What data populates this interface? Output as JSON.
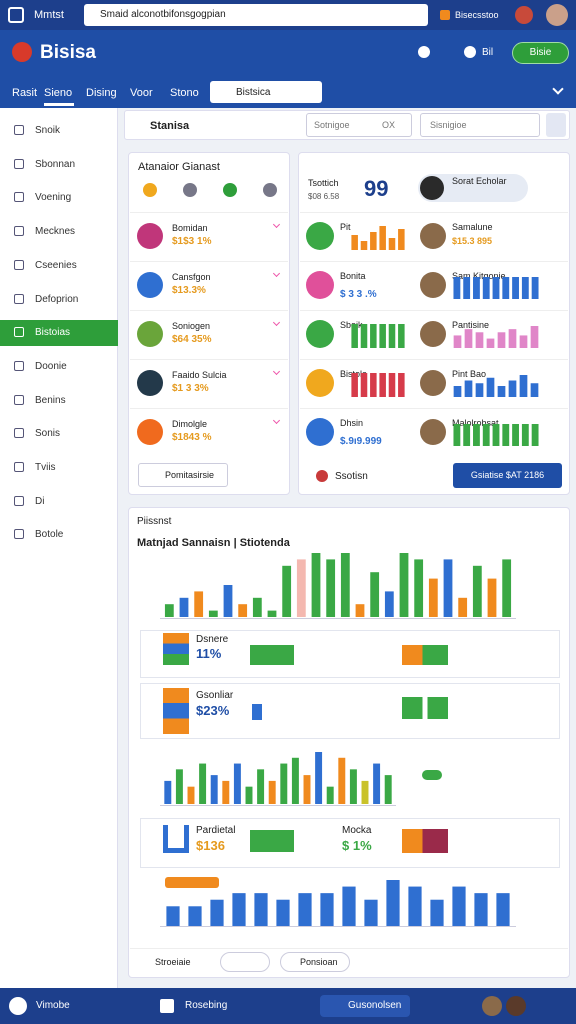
{
  "browser": {
    "title": "Mmtst",
    "url": "Smaid alconotbifonsgogpian",
    "tab": "Bisecsstoo"
  },
  "header": {
    "brand": "Bisisa",
    "menu": "Bil",
    "button": "Bisie"
  },
  "nav": {
    "tabs": [
      "Rasit",
      "Sieno",
      "Dising",
      "Voor",
      "Stono"
    ],
    "active": 1,
    "dropdown": "Bistsica"
  },
  "sidebar": {
    "items": [
      "Snoik",
      "Sbonnan",
      "Voening",
      "Mecknes",
      "Cseenies",
      "Defoprion",
      "Bistoias",
      "Doonie",
      "Benins",
      "Sonis",
      "Tviis",
      "Di",
      "Botole"
    ],
    "active": 6
  },
  "search": {
    "label": "Stanisa",
    "select_a": "Sotnigoe",
    "select_a_extra": "OX",
    "select_b": "Sisnigioe"
  },
  "left_card": {
    "title": "Atanaior Gianast",
    "rows": [
      {
        "name": "Bomidan",
        "value": "$1$3 1%"
      },
      {
        "name": "Cansfgon",
        "value": "$13.3%"
      },
      {
        "name": "Soniogen",
        "value": "$64 35%"
      },
      {
        "name": "Faaido Sulcia",
        "value": "$1 3 3%"
      },
      {
        "name": "Dimolgle",
        "value": "$1843 %"
      }
    ],
    "footer": "Pomitasirsie"
  },
  "right_card": {
    "label": "Tsottich",
    "sublabel": "$08 6.58",
    "big": "99",
    "profile": "Sorat Echolar",
    "rows": [
      {
        "name": "Pit",
        "color": "#f08a1e",
        "values": [
          5,
          3,
          6,
          8,
          4,
          7
        ],
        "right_name": "Samalune",
        "right_value": "$15.3 895"
      },
      {
        "name": "Bonita",
        "value": "$ 3 3 .%",
        "right_name": "Sam Kitgonie",
        "right_values": [
          3,
          3,
          3,
          3,
          3,
          3,
          3,
          3,
          3
        ],
        "right_color": "#2f6fd1"
      },
      {
        "name": "Sboik",
        "color": "#3aa845",
        "values": [
          5,
          5,
          5,
          5,
          5,
          5
        ],
        "right_name": "Pantisine",
        "right_values": [
          4,
          6,
          5,
          3,
          5,
          6,
          4,
          7
        ],
        "right_color": "#e086c8"
      },
      {
        "name": "Bistola",
        "color": "#d63b4a",
        "values": [
          5,
          5,
          5,
          5,
          5,
          5
        ],
        "right_name": "Pint Bao",
        "right_values": [
          4,
          6,
          5,
          7,
          4,
          6,
          8,
          5
        ],
        "right_color": "#2f6fd1"
      },
      {
        "name": "Dhsin",
        "value": "$.9ı9.999",
        "right_name": "Malolrobsat",
        "right_values": [
          5,
          5,
          5,
          5,
          5,
          5,
          5,
          5,
          5
        ],
        "right_color": "#3aa845"
      }
    ],
    "footer": "Ssotisn",
    "button": "Gsiatise $AT 2186"
  },
  "bottom_card": {
    "title": "Piissnst",
    "subtitle": "Matnjad Sannaisn | Stiotenda",
    "chart_a": {
      "values": [
        2,
        3,
        4,
        1,
        5,
        2,
        3,
        1,
        8,
        9,
        10,
        9,
        10,
        2,
        7,
        4,
        10,
        9,
        6,
        9,
        3,
        8,
        6,
        9
      ],
      "colors": [
        "#3aa845",
        "#2f6fd1",
        "#f08a1e",
        "#3aa845",
        "#2f6fd1",
        "#f08a1e",
        "#3aa845",
        "#3aa845",
        "#3aa845",
        "#f4b8b0",
        "#3aa845",
        "#3aa845",
        "#3aa845",
        "#f08a1e",
        "#3aa845",
        "#2f6fd1",
        "#3aa845",
        "#3aa845",
        "#f08a1e",
        "#2f6fd1",
        "#f08a1e",
        "#3aa845",
        "#f08a1e",
        "#3aa845"
      ]
    },
    "stat_a": {
      "name": "Dsnere",
      "value": "11%"
    },
    "stat_b": {
      "name": "Gsonliar",
      "value": "$23%"
    },
    "chart_b": {
      "values": [
        4,
        6,
        3,
        7,
        5,
        4,
        7,
        3,
        6,
        4,
        7,
        8,
        5,
        9,
        3,
        8,
        6,
        4,
        7,
        5
      ],
      "colors": [
        "#2f6fd1",
        "#3aa845",
        "#f08a1e",
        "#3aa845",
        "#2f6fd1",
        "#f08a1e",
        "#2f6fd1",
        "#3aa845",
        "#3aa845",
        "#f08a1e",
        "#3aa845",
        "#3aa845",
        "#f08a1e",
        "#2f6fd1",
        "#3aa845",
        "#f08a1e",
        "#3aa845",
        "#c9c22a",
        "#2f6fd1",
        "#3aa845"
      ]
    },
    "stat_c": {
      "name": "Pardietal",
      "value": "$136"
    },
    "stat_d": {
      "name": "Mocka",
      "value": "$ 1%"
    },
    "chart_c": {
      "values": [
        3,
        3,
        4,
        5,
        5,
        4,
        5,
        5,
        6,
        4,
        7,
        6,
        4,
        6,
        5,
        5
      ],
      "colors": [
        "#2f6fd1"
      ]
    },
    "footer_a": "Stroeiaie",
    "footer_b": "Ponsioan"
  },
  "bottom_bar": {
    "left": "Vimobe",
    "middle": "Rosebing",
    "right": "Gusonolsen"
  }
}
